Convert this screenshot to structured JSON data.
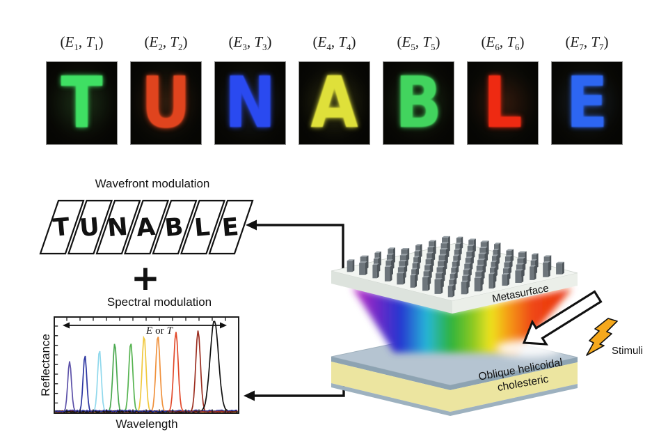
{
  "figure": {
    "hologram_row": {
      "e_symbol": "E",
      "t_symbol": "T",
      "label_format": {
        "open": "(",
        "sep": ", ",
        "close": ")"
      },
      "panels": [
        {
          "sub": "1",
          "letter": "T",
          "color": "#3fdf63"
        },
        {
          "sub": "2",
          "letter": "U",
          "color": "#e0441e"
        },
        {
          "sub": "3",
          "letter": "N",
          "color": "#2a4af0"
        },
        {
          "sub": "4",
          "letter": "A",
          "color": "#dfe03a"
        },
        {
          "sub": "5",
          "letter": "B",
          "color": "#42d45e"
        },
        {
          "sub": "6",
          "letter": "L",
          "color": "#ee2a12"
        },
        {
          "sub": "7",
          "letter": "E",
          "color": "#2d66f2"
        }
      ]
    },
    "wavefront": {
      "title": "Wavefront modulation",
      "letters": [
        "T",
        "U",
        "N",
        "A",
        "B",
        "L",
        "E"
      ]
    },
    "plus_symbol": "+",
    "spectral": {
      "title": "Spectral modulation"
    },
    "schematic": {
      "metasurface_label": "Metasurface",
      "cholesteric_label_line1": "Oblique helicoidal",
      "cholesteric_label_line2": "cholesteric",
      "stimuli_label": "Stimuli",
      "bolt_color": "#f5a81c",
      "slab_top_color": "#b5c4d1",
      "slab_face_color": "#ece5a0",
      "metasurface_top_color": "#f2f5f1",
      "pillar_color": "#6d757b"
    }
  },
  "chart_data": {
    "type": "line",
    "title": "Spectral modulation",
    "xlabel": "Wavelength",
    "ylabel": "Reflectance",
    "annotation": "E or T",
    "annotation_parts": {
      "e": "E",
      "mid": "or",
      "t": "T"
    },
    "x_range": [
      0,
      1
    ],
    "y_range": [
      0,
      1
    ],
    "grid": false,
    "legend": false,
    "series": [
      {
        "name": "peak-1",
        "color": "#5b50a8",
        "center": 0.083,
        "height": 0.53,
        "sigma": 0.014
      },
      {
        "name": "peak-2",
        "color": "#2b35a0",
        "center": 0.166,
        "height": 0.59,
        "sigma": 0.014
      },
      {
        "name": "peak-3",
        "color": "#8fd8ec",
        "center": 0.245,
        "height": 0.65,
        "sigma": 0.014
      },
      {
        "name": "peak-4",
        "color": "#49a84e",
        "center": 0.328,
        "height": 0.72,
        "sigma": 0.015
      },
      {
        "name": "peak-5",
        "color": "#55b34f",
        "center": 0.415,
        "height": 0.73,
        "sigma": 0.015
      },
      {
        "name": "peak-6",
        "color": "#f0c83c",
        "center": 0.487,
        "height": 0.8,
        "sigma": 0.015
      },
      {
        "name": "peak-7",
        "color": "#f0913c",
        "center": 0.562,
        "height": 0.8,
        "sigma": 0.016
      },
      {
        "name": "peak-8",
        "color": "#e2492a",
        "center": 0.66,
        "height": 0.84,
        "sigma": 0.017
      },
      {
        "name": "peak-9",
        "color": "#9c2e20",
        "center": 0.78,
        "height": 0.85,
        "sigma": 0.018
      },
      {
        "name": "peak-10",
        "color": "#101010",
        "center": 0.868,
        "height": 0.96,
        "sigma": 0.032
      }
    ]
  }
}
